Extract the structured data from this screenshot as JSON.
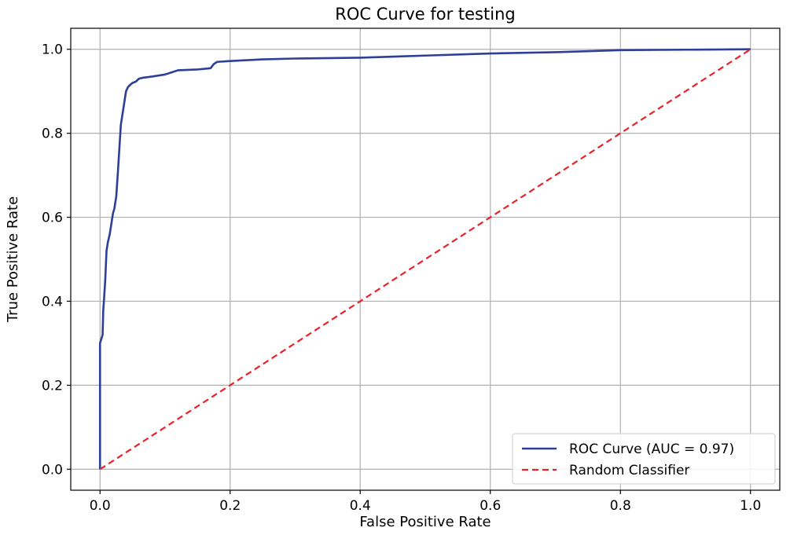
{
  "chart_data": {
    "type": "line",
    "title": "ROC Curve for testing",
    "xlabel": "False Positive Rate",
    "ylabel": "True Positive Rate",
    "xlim": [
      -0.045,
      1.045
    ],
    "ylim": [
      -0.05,
      1.05
    ],
    "xticks": [
      0.0,
      0.2,
      0.4,
      0.6,
      0.8,
      1.0
    ],
    "yticks": [
      0.0,
      0.2,
      0.4,
      0.6,
      0.8,
      1.0
    ],
    "xtick_labels": [
      "0.0",
      "0.2",
      "0.4",
      "0.6",
      "0.8",
      "1.0"
    ],
    "ytick_labels": [
      "0.0",
      "0.2",
      "0.4",
      "0.6",
      "0.8",
      "1.0"
    ],
    "grid": true,
    "legend_position": "lower-right",
    "series": [
      {
        "name": "ROC Curve (AUC = 0.97)",
        "color": "#2e3f9a",
        "style": "solid",
        "x": [
          0.0,
          0.0,
          0.002,
          0.004,
          0.005,
          0.006,
          0.008,
          0.01,
          0.012,
          0.015,
          0.018,
          0.02,
          0.022,
          0.025,
          0.028,
          0.03,
          0.032,
          0.034,
          0.036,
          0.038,
          0.04,
          0.043,
          0.046,
          0.05,
          0.055,
          0.06,
          0.065,
          0.08,
          0.1,
          0.11,
          0.12,
          0.15,
          0.17,
          0.175,
          0.18,
          0.2,
          0.25,
          0.3,
          0.4,
          0.5,
          0.6,
          0.7,
          0.8,
          0.9,
          1.0
        ],
        "y": [
          0.0,
          0.3,
          0.31,
          0.32,
          0.38,
          0.4,
          0.45,
          0.52,
          0.54,
          0.56,
          0.59,
          0.61,
          0.62,
          0.65,
          0.72,
          0.77,
          0.82,
          0.84,
          0.86,
          0.88,
          0.9,
          0.91,
          0.915,
          0.92,
          0.923,
          0.93,
          0.932,
          0.935,
          0.94,
          0.945,
          0.95,
          0.952,
          0.955,
          0.965,
          0.97,
          0.972,
          0.976,
          0.978,
          0.98,
          0.985,
          0.99,
          0.993,
          0.998,
          0.999,
          1.0
        ]
      },
      {
        "name": "Random Classifier",
        "color": "#e8222a",
        "style": "dashed",
        "x": [
          0.0,
          1.0
        ],
        "y": [
          0.0,
          1.0
        ]
      }
    ]
  }
}
